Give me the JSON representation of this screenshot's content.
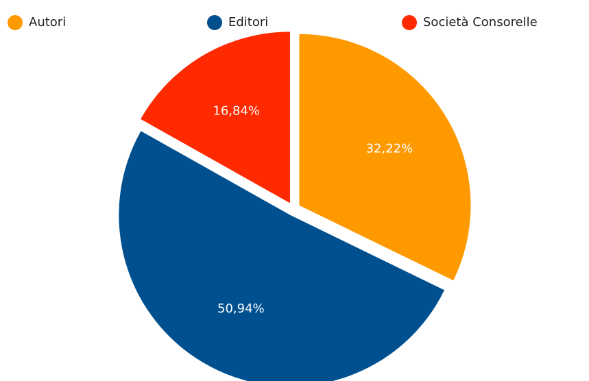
{
  "chart_data": {
    "type": "pie",
    "categories": [
      "Autori",
      "Editori",
      "Società Consorelle"
    ],
    "values": [
      32.22,
      50.94,
      16.84
    ],
    "value_labels": [
      "32,22%",
      "50,94%",
      "16,84%"
    ],
    "colors": [
      "#ff9900",
      "#00508f",
      "#ff2a00"
    ],
    "legend": "top"
  }
}
